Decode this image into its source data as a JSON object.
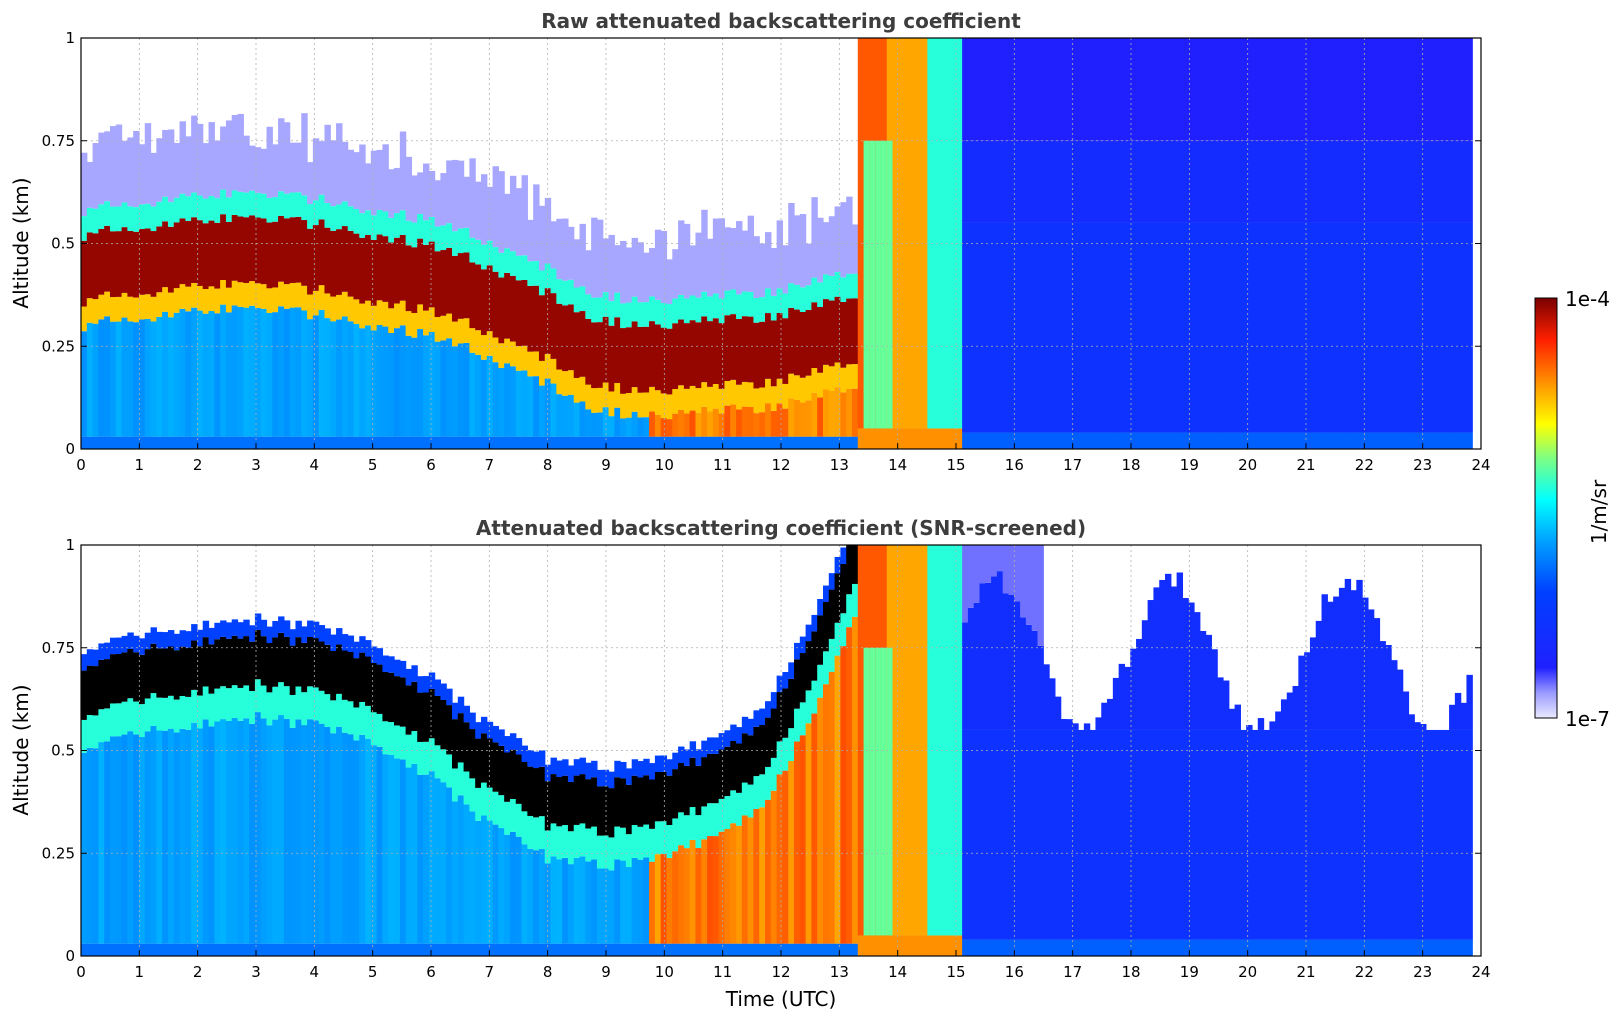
{
  "chart_data": [
    {
      "type": "heatmap",
      "title": "Raw attenuated backscattering coefficient",
      "xlabel": "",
      "ylabel": "Altitude (km)",
      "xlim": [
        0,
        24
      ],
      "ylim": [
        0,
        1
      ],
      "xticks": [
        "0",
        "1",
        "2",
        "3",
        "4",
        "5",
        "6",
        "7",
        "8",
        "9",
        "10",
        "11",
        "12",
        "13",
        "14",
        "15",
        "16",
        "17",
        "18",
        "19",
        "20",
        "21",
        "22",
        "23",
        "24"
      ],
      "yticks": [
        "0",
        "0.25",
        "0.5",
        "0.75",
        "1"
      ],
      "grid": true,
      "mode": "raw",
      "layer_top_km": [
        0.42,
        0.44,
        0.46,
        0.46,
        0.45,
        0.42,
        0.4,
        0.34,
        0.28,
        0.22,
        0.2,
        0.21,
        0.22,
        0.24,
        0.26,
        0.26
      ],
      "layer_time_h": [
        0,
        1,
        2,
        3,
        4,
        5,
        6,
        7,
        8,
        8.7,
        9.5,
        10.5,
        11.5,
        12.5,
        13,
        13.3
      ]
    },
    {
      "type": "heatmap",
      "title": "Attenuated backscattering coefficient (SNR-screened)",
      "xlabel": "Time (UTC)",
      "ylabel": "Altitude (km)",
      "xlim": [
        0,
        24
      ],
      "ylim": [
        0,
        1
      ],
      "xticks": [
        "0",
        "1",
        "2",
        "3",
        "4",
        "5",
        "6",
        "7",
        "8",
        "9",
        "10",
        "11",
        "12",
        "13",
        "14",
        "15",
        "16",
        "17",
        "18",
        "19",
        "20",
        "21",
        "22",
        "23",
        "24"
      ],
      "yticks": [
        "0",
        "0.25",
        "0.5",
        "0.75",
        "1"
      ],
      "grid": true,
      "mode": "screened",
      "signal_top_km": [
        0.62,
        0.66,
        0.68,
        0.7,
        0.68,
        0.64,
        0.56,
        0.44,
        0.36,
        0.34,
        0.36,
        0.42,
        0.5,
        0.7,
        0.95
      ],
      "signal_time_h": [
        0,
        1,
        2,
        3,
        4,
        5,
        6,
        7,
        8,
        9,
        10,
        11,
        11.8,
        12.5,
        13.3
      ]
    }
  ],
  "colorbar": {
    "label": "1/m/sr",
    "max_label": "1e-4",
    "min_label": "1e-7",
    "colors": [
      "#eaeaff",
      "#b7b7ff",
      "#5858ff",
      "#1a1aff",
      "#0000ff",
      "#0040ff",
      "#0080ff",
      "#00bfff",
      "#00ffff",
      "#40ff9f",
      "#9fff40",
      "#ffff00",
      "#ffbf00",
      "#ff8000",
      "#ff4000",
      "#e00000",
      "#800000"
    ]
  }
}
